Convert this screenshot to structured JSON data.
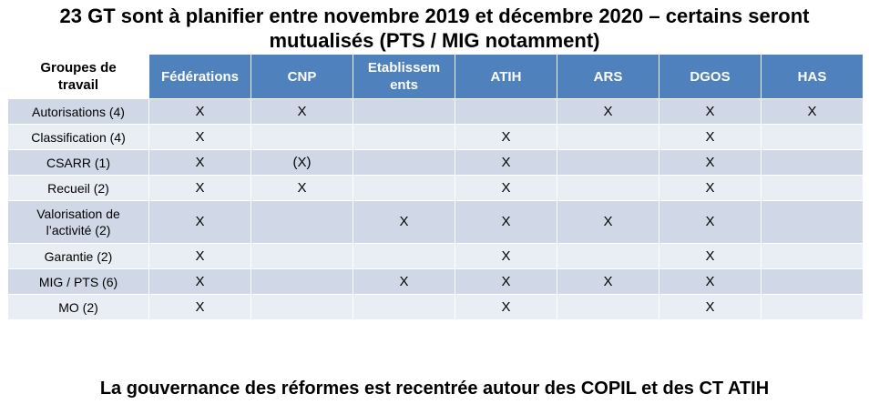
{
  "title_line1": "23 GT sont à planifier entre novembre 2019 et décembre 2020 – certains seront",
  "title_line2": "mutualisés (PTS / MIG notamment)",
  "table": {
    "first_header_line1": "Groupes de",
    "first_header_line2": "travail",
    "headers": [
      "Fédérations",
      "CNP",
      "Etablissem\nents",
      "ATIH",
      "ARS",
      "DGOS",
      "HAS"
    ],
    "rows": [
      {
        "label": "Autorisations (4)",
        "cells": [
          "X",
          "X",
          "",
          "",
          "X",
          "X",
          "X"
        ]
      },
      {
        "label": "Classification (4)",
        "cells": [
          "X",
          "",
          "",
          "X",
          "",
          "X",
          ""
        ]
      },
      {
        "label": "CSARR (1)",
        "cells": [
          "X",
          "(X)",
          "",
          "X",
          "",
          "X",
          ""
        ]
      },
      {
        "label": "Recueil (2)",
        "cells": [
          "X",
          "X",
          "",
          "X",
          "",
          "X",
          ""
        ]
      },
      {
        "label": "Valorisation de\nl’activité (2)",
        "cells": [
          "X",
          "",
          "X",
          "X",
          "X",
          "X",
          ""
        ]
      },
      {
        "label": "Garantie (2)",
        "cells": [
          "X",
          "",
          "",
          "X",
          "",
          "X",
          ""
        ]
      },
      {
        "label": "MIG / PTS (6)",
        "cells": [
          "X",
          "",
          "X",
          "X",
          "X",
          "X",
          ""
        ]
      },
      {
        "label": "MO (2)",
        "cells": [
          "X",
          "",
          "",
          "X",
          "",
          "X",
          ""
        ]
      }
    ]
  },
  "footer": "La gouvernance des réformes est recentrée autour des COPIL et des CT ATIH"
}
